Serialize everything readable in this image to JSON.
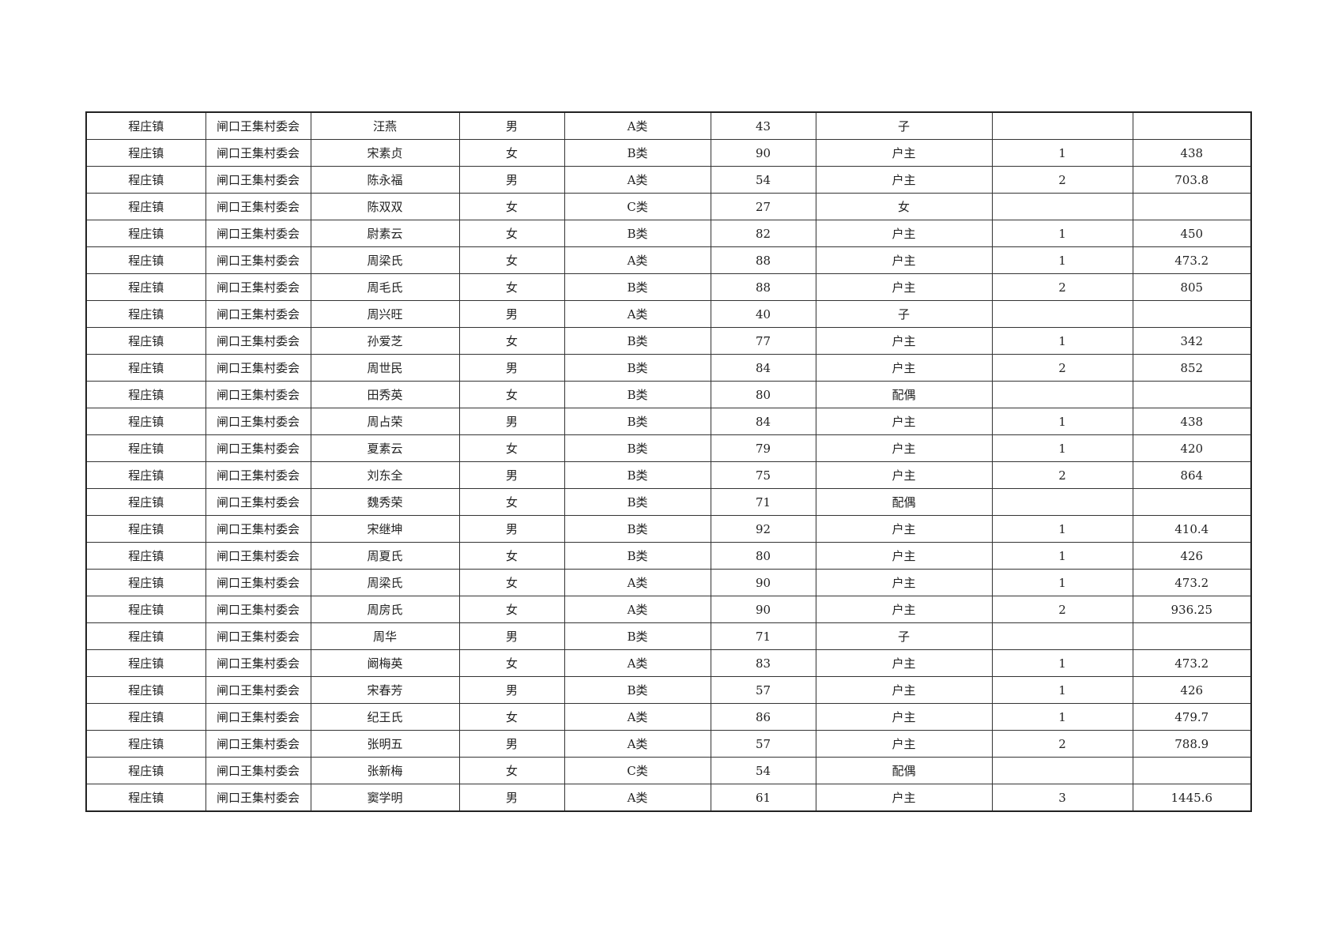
{
  "table": {
    "rows": [
      [
        "程庄镇",
        "闸口王集村委会",
        "汪燕",
        "男",
        "A类",
        "43",
        "子",
        "",
        ""
      ],
      [
        "程庄镇",
        "闸口王集村委会",
        "宋素贞",
        "女",
        "B类",
        "90",
        "户主",
        "1",
        "438"
      ],
      [
        "程庄镇",
        "闸口王集村委会",
        "陈永福",
        "男",
        "A类",
        "54",
        "户主",
        "2",
        "703.8"
      ],
      [
        "程庄镇",
        "闸口王集村委会",
        "陈双双",
        "女",
        "C类",
        "27",
        "女",
        "",
        ""
      ],
      [
        "程庄镇",
        "闸口王集村委会",
        "尉素云",
        "女",
        "B类",
        "82",
        "户主",
        "1",
        "450"
      ],
      [
        "程庄镇",
        "闸口王集村委会",
        "周梁氏",
        "女",
        "A类",
        "88",
        "户主",
        "1",
        "473.2"
      ],
      [
        "程庄镇",
        "闸口王集村委会",
        "周毛氏",
        "女",
        "B类",
        "88",
        "户主",
        "2",
        "805"
      ],
      [
        "程庄镇",
        "闸口王集村委会",
        "周兴旺",
        "男",
        "A类",
        "40",
        "子",
        "",
        ""
      ],
      [
        "程庄镇",
        "闸口王集村委会",
        "孙爱芝",
        "女",
        "B类",
        "77",
        "户主",
        "1",
        "342"
      ],
      [
        "程庄镇",
        "闸口王集村委会",
        "周世民",
        "男",
        "B类",
        "84",
        "户主",
        "2",
        "852"
      ],
      [
        "程庄镇",
        "闸口王集村委会",
        "田秀英",
        "女",
        "B类",
        "80",
        "配偶",
        "",
        ""
      ],
      [
        "程庄镇",
        "闸口王集村委会",
        "周占荣",
        "男",
        "B类",
        "84",
        "户主",
        "1",
        "438"
      ],
      [
        "程庄镇",
        "闸口王集村委会",
        "夏素云",
        "女",
        "B类",
        "79",
        "户主",
        "1",
        "420"
      ],
      [
        "程庄镇",
        "闸口王集村委会",
        "刘东全",
        "男",
        "B类",
        "75",
        "户主",
        "2",
        "864"
      ],
      [
        "程庄镇",
        "闸口王集村委会",
        "魏秀荣",
        "女",
        "B类",
        "71",
        "配偶",
        "",
        ""
      ],
      [
        "程庄镇",
        "闸口王集村委会",
        "宋继坤",
        "男",
        "B类",
        "92",
        "户主",
        "1",
        "410.4"
      ],
      [
        "程庄镇",
        "闸口王集村委会",
        "周夏氏",
        "女",
        "B类",
        "80",
        "户主",
        "1",
        "426"
      ],
      [
        "程庄镇",
        "闸口王集村委会",
        "周梁氏",
        "女",
        "A类",
        "90",
        "户主",
        "1",
        "473.2"
      ],
      [
        "程庄镇",
        "闸口王集村委会",
        "周房氏",
        "女",
        "A类",
        "90",
        "户主",
        "2",
        "936.25"
      ],
      [
        "程庄镇",
        "闸口王集村委会",
        "周华",
        "男",
        "B类",
        "71",
        "子",
        "",
        ""
      ],
      [
        "程庄镇",
        "闸口王集村委会",
        "阚梅英",
        "女",
        "A类",
        "83",
        "户主",
        "1",
        "473.2"
      ],
      [
        "程庄镇",
        "闸口王集村委会",
        "宋春芳",
        "男",
        "B类",
        "57",
        "户主",
        "1",
        "426"
      ],
      [
        "程庄镇",
        "闸口王集村委会",
        "纪王氏",
        "女",
        "A类",
        "86",
        "户主",
        "1",
        "479.7"
      ],
      [
        "程庄镇",
        "闸口王集村委会",
        "张明五",
        "男",
        "A类",
        "57",
        "户主",
        "2",
        "788.9"
      ],
      [
        "程庄镇",
        "闸口王集村委会",
        "张新梅",
        "女",
        "C类",
        "54",
        "配偶",
        "",
        ""
      ],
      [
        "程庄镇",
        "闸口王集村委会",
        "窦学明",
        "男",
        "A类",
        "61",
        "户主",
        "3",
        "1445.6"
      ]
    ]
  }
}
